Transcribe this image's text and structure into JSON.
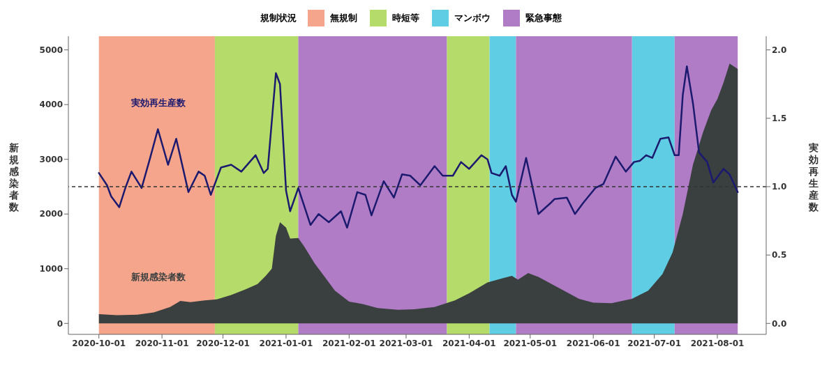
{
  "chart_data": {
    "type": "area",
    "xlabel": null,
    "ylabel": "新規感染者数",
    "y2label": "実効再生産数",
    "legend_title": "規制状況",
    "legend": "top",
    "xlim": [
      "2020-09-16",
      "2021-08-25"
    ],
    "xticks": [
      "2020-10-01",
      "2020-11-01",
      "2020-12-01",
      "2021-01-01",
      "2021-02-01",
      "2021-03-01",
      "2021-04-01",
      "2021-05-01",
      "2021-06-01",
      "2021-07-01",
      "2021-08-01"
    ],
    "ylim": [
      -200,
      5250
    ],
    "yticks": [
      0,
      1000,
      2000,
      3000,
      4000,
      5000
    ],
    "y2lim": [
      -0.08,
      2.1
    ],
    "y2ticks": [
      {
        "value": 0,
        "label": "0.0"
      },
      {
        "value": 0.5,
        "label": "0.5"
      },
      {
        "value": 1,
        "label": "1.0"
      },
      {
        "value": 1.5,
        "label": "1.5"
      },
      {
        "value": 2,
        "label": "2.0"
      }
    ],
    "grid": false,
    "series": [
      {
        "name": "新規感染者数",
        "color": "#3a3f3f",
        "x": [
          "2020-10-01",
          "2020-10-10",
          "2020-10-20",
          "2020-10-28",
          "2020-11-05",
          "2020-11-10",
          "2020-11-15",
          "2020-11-22",
          "2020-11-28",
          "2020-12-05",
          "2020-12-12",
          "2020-12-18",
          "2020-12-22",
          "2020-12-25",
          "2020-12-27",
          "2020-12-29",
          "2021-01-01",
          "2021-01-03",
          "2021-01-07",
          "2021-01-10",
          "2021-01-15",
          "2021-01-20",
          "2021-01-25",
          "2021-02-01",
          "2021-02-08",
          "2021-02-15",
          "2021-02-25",
          "2021-03-05",
          "2021-03-15",
          "2021-03-25",
          "2021-04-01",
          "2021-04-10",
          "2021-04-18",
          "2021-04-22",
          "2021-04-25",
          "2021-04-30",
          "2021-05-05",
          "2021-05-15",
          "2021-05-25",
          "2021-06-01",
          "2021-06-10",
          "2021-06-20",
          "2021-06-28",
          "2021-07-05",
          "2021-07-10",
          "2021-07-15",
          "2021-07-20",
          "2021-07-25",
          "2021-07-29",
          "2021-08-01",
          "2021-08-04",
          "2021-08-07",
          "2021-08-11"
        ],
        "values": [
          170,
          150,
          160,
          200,
          300,
          410,
          390,
          420,
          440,
          520,
          620,
          720,
          870,
          1000,
          1600,
          1850,
          1750,
          1550,
          1560,
          1400,
          1100,
          850,
          600,
          400,
          350,
          280,
          250,
          260,
          300,
          420,
          550,
          750,
          830,
          870,
          800,
          920,
          850,
          650,
          450,
          380,
          370,
          450,
          600,
          900,
          1300,
          2000,
          2900,
          3500,
          3900,
          4100,
          4400,
          4750,
          4650
        ]
      },
      {
        "name": "実効再生産数",
        "type": "line",
        "axis": "y2",
        "color": "#1c1a6e",
        "x": [
          "2020-10-01",
          "2020-10-05",
          "2020-10-07",
          "2020-10-11",
          "2020-10-14",
          "2020-10-17",
          "2020-10-22",
          "2020-10-26",
          "2020-10-30",
          "2020-11-04",
          "2020-11-08",
          "2020-11-14",
          "2020-11-19",
          "2020-11-22",
          "2020-11-25",
          "2020-11-30",
          "2020-12-05",
          "2020-12-10",
          "2020-12-17",
          "2020-12-21",
          "2020-12-23",
          "2020-12-27",
          "2020-12-29",
          "2021-01-01",
          "2021-01-03",
          "2021-01-07",
          "2021-01-13",
          "2021-01-17",
          "2021-01-22",
          "2021-01-28",
          "2021-01-31",
          "2021-02-05",
          "2021-02-09",
          "2021-02-12",
          "2021-02-18",
          "2021-02-23",
          "2021-02-27",
          "2021-03-03",
          "2021-03-08",
          "2021-03-15",
          "2021-03-19",
          "2021-03-24",
          "2021-03-28",
          "2021-04-01",
          "2021-04-07",
          "2021-04-10",
          "2021-04-12",
          "2021-04-16",
          "2021-04-19",
          "2021-04-22",
          "2021-04-24",
          "2021-04-29",
          "2021-05-05",
          "2021-05-11",
          "2021-05-13",
          "2021-05-19",
          "2021-05-23",
          "2021-05-27",
          "2021-06-02",
          "2021-06-06",
          "2021-06-12",
          "2021-06-17",
          "2021-06-21",
          "2021-06-24",
          "2021-06-27",
          "2021-06-30",
          "2021-07-04",
          "2021-07-08",
          "2021-07-11",
          "2021-07-13",
          "2021-07-15",
          "2021-07-17",
          "2021-07-20",
          "2021-07-23",
          "2021-07-27",
          "2021-07-30",
          "2021-08-04",
          "2021-08-07",
          "2021-08-11"
        ],
        "values": [
          1.1,
          1.01,
          0.93,
          0.85,
          0.99,
          1.11,
          0.99,
          1.2,
          1.42,
          1.16,
          1.35,
          0.96,
          1.11,
          1.08,
          0.94,
          1.14,
          1.16,
          1.11,
          1.23,
          1.1,
          1.13,
          1.83,
          1.75,
          0.97,
          0.82,
          0.99,
          0.72,
          0.8,
          0.74,
          0.82,
          0.7,
          0.96,
          0.94,
          0.79,
          1.04,
          0.92,
          1.09,
          1.08,
          1.01,
          1.15,
          1.08,
          1.08,
          1.18,
          1.13,
          1.23,
          1.2,
          1.1,
          1.08,
          1.15,
          0.94,
          0.89,
          1.21,
          0.8,
          0.88,
          0.91,
          0.92,
          0.8,
          0.88,
          0.99,
          1.02,
          1.22,
          1.11,
          1.18,
          1.19,
          1.23,
          1.21,
          1.35,
          1.36,
          1.23,
          1.23,
          1.67,
          1.88,
          1.61,
          1.25,
          1.18,
          1.03,
          1.13,
          1.09,
          0.96
        ]
      }
    ],
    "ref_lines": [
      {
        "axis": "y2",
        "value": 1,
        "label": null,
        "color": "#333333",
        "line_style": "dashed"
      }
    ],
    "bands": [
      {
        "axis": "x",
        "from": "2020-10-01",
        "to": "2020-11-27",
        "label": "無規制",
        "color": "#f4a58c"
      },
      {
        "axis": "x",
        "from": "2020-11-27",
        "to": "2021-01-07",
        "label": "時短等",
        "color": "#b5dc6a"
      },
      {
        "axis": "x",
        "from": "2021-03-21",
        "to": "2021-04-11",
        "label": null,
        "color": "#b5dc6a"
      },
      {
        "axis": "x",
        "from": "2021-04-11",
        "to": "2021-04-24",
        "label": "マンボウ",
        "color": "#5fcde4"
      },
      {
        "axis": "x",
        "from": "2021-06-20",
        "to": "2021-07-11",
        "label": null,
        "color": "#5fcde4"
      },
      {
        "axis": "x",
        "from": "2021-01-07",
        "to": "2021-03-21",
        "label": "緊急事態",
        "color": "#b07cc6"
      },
      {
        "axis": "x",
        "from": "2021-04-24",
        "to": "2021-06-20",
        "label": null,
        "color": "#b07cc6"
      },
      {
        "axis": "x",
        "from": "2021-07-11",
        "to": "2021-08-11",
        "label": null,
        "color": "#b07cc6"
      }
    ]
  }
}
